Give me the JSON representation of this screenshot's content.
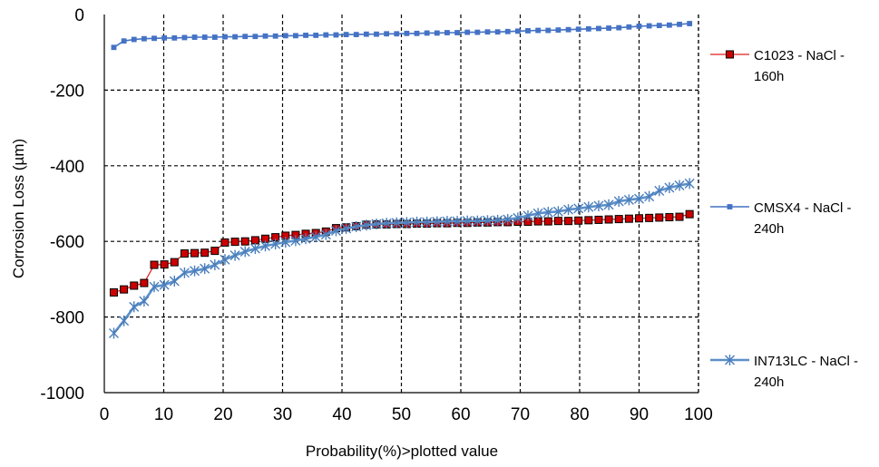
{
  "chart_data": {
    "type": "line",
    "xlabel": "Probability(%)>plotted value",
    "ylabel": "Corrosion Loss (µm)",
    "xlim": [
      0,
      100
    ],
    "ylim": [
      -1000,
      0
    ],
    "x_ticks": [
      "0",
      "10",
      "20",
      "30",
      "40",
      "50",
      "60",
      "70",
      "80",
      "90",
      "100"
    ],
    "y_ticks": [
      "0",
      "-200",
      "-400",
      "-600",
      "-800",
      "-1000"
    ],
    "grid": "dashed black major gridlines",
    "legend_position": "right",
    "series": [
      {
        "name": "C1023 - NaCl - 160h",
        "legend_lines": [
          "C1023 - NaCl -",
          "160h"
        ],
        "line_color": "#e11d1d",
        "marker": "square",
        "marker_fill": "#cc0000",
        "marker_stroke": "#000000",
        "x": [
          1.6,
          3.3,
          5.0,
          6.7,
          8.4,
          10.1,
          11.8,
          13.5,
          15.2,
          16.9,
          18.6,
          20.3,
          22.0,
          23.7,
          25.4,
          27.1,
          28.8,
          30.5,
          32.2,
          33.9,
          35.6,
          37.3,
          39.0,
          40.7,
          42.4,
          44.1,
          45.8,
          47.5,
          49.2,
          50.9,
          52.6,
          54.3,
          56.0,
          57.7,
          59.4,
          61.1,
          62.8,
          64.5,
          66.2,
          67.9,
          69.6,
          71.3,
          73.0,
          74.7,
          76.4,
          78.1,
          79.8,
          81.5,
          83.2,
          84.9,
          86.6,
          88.3,
          90.0,
          91.7,
          93.4,
          95.1,
          96.8,
          98.5
        ],
        "y": [
          -735,
          -727,
          -717,
          -710,
          -662,
          -661,
          -655,
          -632,
          -631,
          -630,
          -625,
          -603,
          -601,
          -600,
          -597,
          -593,
          -589,
          -585,
          -583,
          -580,
          -578,
          -574,
          -565,
          -563,
          -560,
          -556,
          -555,
          -555,
          -554,
          -554,
          -553,
          -553,
          -552,
          -552,
          -551,
          -551,
          -550,
          -550,
          -549,
          -549,
          -548,
          -548,
          -547,
          -547,
          -546,
          -546,
          -545,
          -544,
          -543,
          -542,
          -541,
          -540,
          -539,
          -538,
          -537,
          -536,
          -535,
          -528
        ]
      },
      {
        "name": "CMSX4 - NaCl - 240h",
        "legend_lines": [
          "CMSX4 - NaCl -",
          "240h"
        ],
        "line_color": "#4472c4",
        "marker": "small-square",
        "marker_fill": "#4472c4",
        "marker_stroke": "#4472c4",
        "x": [
          1.6,
          3.3,
          5.0,
          6.7,
          8.4,
          10.1,
          11.8,
          13.5,
          15.2,
          16.9,
          18.6,
          20.3,
          22.0,
          23.7,
          25.4,
          27.1,
          28.8,
          30.5,
          32.2,
          33.9,
          35.6,
          37.3,
          39.0,
          40.7,
          42.4,
          44.1,
          45.8,
          47.5,
          49.2,
          50.9,
          52.6,
          54.3,
          56.0,
          57.7,
          59.4,
          61.1,
          62.8,
          64.5,
          66.2,
          67.9,
          69.6,
          71.3,
          73.0,
          74.7,
          76.4,
          78.1,
          79.8,
          81.5,
          83.2,
          84.9,
          86.6,
          88.3,
          90.0,
          91.7,
          93.4,
          95.1,
          96.8,
          98.5
        ],
        "y": [
          -87,
          -70,
          -66,
          -64,
          -63,
          -62,
          -62,
          -61,
          -60,
          -60,
          -60,
          -59,
          -59,
          -58,
          -58,
          -57,
          -57,
          -56,
          -56,
          -55,
          -55,
          -54,
          -54,
          -53,
          -53,
          -52,
          -52,
          -51,
          -51,
          -50,
          -50,
          -49,
          -49,
          -48,
          -48,
          -47,
          -47,
          -46,
          -46,
          -45,
          -44,
          -43,
          -42,
          -42,
          -41,
          -40,
          -39,
          -38,
          -37,
          -36,
          -35,
          -33,
          -31,
          -30,
          -29,
          -28,
          -26,
          -24
        ]
      },
      {
        "name": "IN713LC - NaCl - 240h",
        "legend_lines": [
          "IN713LC - NaCl -",
          "240h"
        ],
        "line_color": "#5b8fc9",
        "marker": "asterisk",
        "marker_fill": "none",
        "marker_stroke": "#4a7ebb",
        "x": [
          1.6,
          3.3,
          5.0,
          6.7,
          8.4,
          10.1,
          11.8,
          13.5,
          15.2,
          16.9,
          18.6,
          20.3,
          22.0,
          23.7,
          25.4,
          27.1,
          28.8,
          30.5,
          32.2,
          33.9,
          35.6,
          37.3,
          39.0,
          40.7,
          42.4,
          44.1,
          45.8,
          47.5,
          49.2,
          50.9,
          52.6,
          54.3,
          56.0,
          57.7,
          59.4,
          61.1,
          62.8,
          64.5,
          66.2,
          67.9,
          69.6,
          71.3,
          73.0,
          74.7,
          76.4,
          78.1,
          79.8,
          81.5,
          83.2,
          84.9,
          86.6,
          88.3,
          90.0,
          91.7,
          93.4,
          95.1,
          96.8,
          98.5
        ],
        "y": [
          -843,
          -810,
          -773,
          -758,
          -720,
          -715,
          -705,
          -683,
          -678,
          -672,
          -662,
          -648,
          -637,
          -627,
          -619,
          -612,
          -607,
          -602,
          -598,
          -593,
          -588,
          -582,
          -572,
          -566,
          -561,
          -557,
          -554,
          -552,
          -551,
          -550,
          -549,
          -549,
          -548,
          -547,
          -547,
          -546,
          -546,
          -545,
          -544,
          -542,
          -538,
          -532,
          -526,
          -523,
          -521,
          -516,
          -513,
          -509,
          -506,
          -503,
          -494,
          -490,
          -487,
          -481,
          -466,
          -458,
          -452,
          -447
        ]
      }
    ]
  }
}
